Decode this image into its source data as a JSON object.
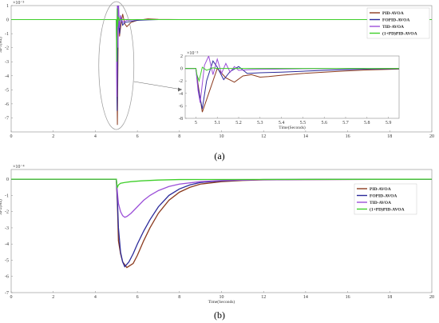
{
  "colors": {
    "PID-AVOA": "#8b3a1e",
    "FOPID-AVOA": "#2b2a9a",
    "TID-AVOA": "#9b4fd8",
    "(1+PD)PID-AVOA": "#3fcf2a",
    "axis": "#8a8a8a",
    "grid": "#f0f0f0"
  },
  "chart_data": [
    {
      "id": "a",
      "type": "line",
      "caption": "(a)",
      "ylabel": "ΔF1(Hz)",
      "xlabel": "",
      "xlim": [
        0,
        20
      ],
      "ylim": [
        -8,
        1
      ],
      "xticks": [
        0,
        2,
        4,
        6,
        8,
        10,
        12,
        14,
        16,
        18,
        20
      ],
      "yticks": [
        1,
        0,
        -1,
        -2,
        -3,
        -4,
        -5,
        -6,
        -7
      ],
      "exponent": "×10⁻³",
      "legend_position": "top-right",
      "series": [
        {
          "name": "PID-AVOA",
          "x": [
            0,
            5,
            5.05,
            5.1,
            5.15,
            5.2,
            5.3,
            5.4,
            5.5,
            5.7,
            6,
            6.5,
            7,
            8,
            20
          ],
          "y": [
            0,
            0,
            -7.5,
            0.8,
            -1.2,
            -0.6,
            0.4,
            -0.3,
            -0.5,
            -0.2,
            -0.05,
            0.05,
            0.02,
            0,
            0
          ]
        },
        {
          "name": "FOPID-AVOA",
          "x": [
            0,
            5,
            5.04,
            5.08,
            5.12,
            5.16,
            5.2,
            5.3,
            5.4,
            5.6,
            6,
            6.5,
            7,
            8,
            20
          ],
          "y": [
            0,
            0,
            -6.5,
            1.2,
            -0.5,
            -1.0,
            0.3,
            -0.4,
            -0.2,
            -0.15,
            -0.05,
            -0.02,
            0,
            0,
            0
          ]
        },
        {
          "name": "TID-AVOA",
          "x": [
            0,
            5,
            5.02,
            5.05,
            5.08,
            5.11,
            5.15,
            5.2,
            5.3,
            5.5,
            6,
            7,
            20
          ],
          "y": [
            0,
            0,
            -5.5,
            2.0,
            -2.0,
            1.0,
            -0.6,
            0.3,
            -0.2,
            -0.05,
            0,
            0,
            0
          ]
        },
        {
          "name": "(1+PD)PID-AVOA",
          "x": [
            0,
            5,
            5.02,
            5.04,
            5.06,
            5.1,
            5.15,
            5.2,
            20
          ],
          "y": [
            0,
            0,
            -3.0,
            0.8,
            -0.5,
            0.2,
            -0.05,
            0,
            0
          ]
        }
      ],
      "inset": {
        "xlim": [
          4.95,
          5.95
        ],
        "ylim": [
          -8,
          2
        ],
        "xticks": [
          5,
          5.1,
          5.2,
          5.3,
          5.4,
          5.5,
          5.6,
          5.7,
          5.8,
          5.9
        ],
        "yticks": [
          2,
          0,
          -2,
          -4,
          -6,
          -8
        ],
        "xlabel": "Time(Seconds)",
        "exponent": "×10⁻³",
        "series": [
          {
            "name": "PID-AVOA",
            "x": [
              4.95,
              5.0,
              5.01,
              5.03,
              5.06,
              5.1,
              5.14,
              5.18,
              5.22,
              5.26,
              5.3,
              5.34,
              5.4,
              5.5,
              5.6,
              5.7,
              5.8,
              5.95
            ],
            "y": [
              0,
              0,
              -2.5,
              -7.0,
              -4.0,
              0.0,
              -1.5,
              -2.2,
              -1.2,
              -1.0,
              -1.4,
              -1.3,
              -1.1,
              -0.8,
              -0.6,
              -0.4,
              -0.25,
              -0.1
            ]
          },
          {
            "name": "FOPID-AVOA",
            "x": [
              4.95,
              5.0,
              5.01,
              5.03,
              5.05,
              5.08,
              5.1,
              5.13,
              5.16,
              5.2,
              5.24,
              5.3,
              5.4,
              5.5,
              5.6,
              5.7,
              5.8,
              5.95
            ],
            "y": [
              0,
              0,
              -3.0,
              -6.5,
              -2.0,
              1.2,
              0.2,
              -1.8,
              -0.5,
              0.3,
              -0.8,
              -0.7,
              -0.6,
              -0.45,
              -0.3,
              -0.2,
              -0.1,
              -0.05
            ]
          },
          {
            "name": "TID-AVOA",
            "x": [
              4.95,
              5.0,
              5.01,
              5.02,
              5.04,
              5.06,
              5.08,
              5.1,
              5.12,
              5.14,
              5.16,
              5.18,
              5.2,
              5.25,
              5.3,
              5.4,
              5.5,
              5.95
            ],
            "y": [
              0,
              0,
              -3.5,
              -5.5,
              0.5,
              2.0,
              -1.0,
              1.5,
              -0.8,
              0.8,
              -0.6,
              0.3,
              -0.3,
              -0.2,
              -0.15,
              -0.1,
              -0.05,
              0
            ]
          },
          {
            "name": "(1+PD)PID-AVOA",
            "x": [
              4.95,
              5.0,
              5.005,
              5.015,
              5.03,
              5.05,
              5.08,
              5.1,
              5.95
            ],
            "y": [
              0,
              0,
              -1.0,
              -2.0,
              0.2,
              -0.3,
              0.1,
              0,
              0
            ]
          }
        ]
      }
    },
    {
      "id": "b",
      "type": "line",
      "caption": "(b)",
      "ylabel": "ΔF2(Hz)",
      "xlabel": "Time(Seconds)",
      "xlim": [
        0,
        20
      ],
      "ylim": [
        -7,
        0.6
      ],
      "xticks": [
        0,
        2,
        4,
        6,
        8,
        10,
        12,
        14,
        16,
        18,
        20
      ],
      "yticks": [
        0,
        -1,
        -2,
        -3,
        -4,
        -5,
        -6,
        -7
      ],
      "exponent": "×10⁻⁴",
      "legend_position": "right",
      "series": [
        {
          "name": "PID-AVOA",
          "x": [
            0,
            5,
            5.05,
            5.1,
            5.2,
            5.3,
            5.5,
            5.8,
            6,
            6.3,
            6.6,
            7,
            7.5,
            8,
            8.5,
            9,
            10,
            11,
            12,
            14,
            20
          ],
          "y": [
            0,
            0,
            -1.5,
            -3.8,
            -4.6,
            -5.1,
            -5.45,
            -5.2,
            -4.7,
            -3.8,
            -3.0,
            -2.1,
            -1.3,
            -0.8,
            -0.5,
            -0.3,
            -0.15,
            -0.08,
            -0.04,
            -0.02,
            0
          ]
        },
        {
          "name": "FOPID-AVOA",
          "x": [
            0,
            5,
            5.05,
            5.1,
            5.2,
            5.3,
            5.4,
            5.6,
            5.8,
            6,
            6.3,
            6.6,
            7,
            7.5,
            8,
            8.5,
            9,
            10,
            11,
            12,
            14,
            20
          ],
          "y": [
            0,
            0,
            -1.2,
            -3.0,
            -4.5,
            -5.1,
            -5.4,
            -5.1,
            -4.6,
            -4.0,
            -3.2,
            -2.5,
            -1.7,
            -1.0,
            -0.6,
            -0.35,
            -0.2,
            -0.1,
            -0.05,
            -0.02,
            -0.01,
            0
          ]
        },
        {
          "name": "TID-AVOA",
          "x": [
            0,
            5,
            5.05,
            5.1,
            5.2,
            5.3,
            5.4,
            5.5,
            5.7,
            6,
            6.3,
            6.6,
            7,
            7.5,
            8,
            9,
            10,
            12,
            20
          ],
          "y": [
            0,
            0,
            -0.8,
            -1.5,
            -2.0,
            -2.25,
            -2.35,
            -2.3,
            -2.1,
            -1.7,
            -1.3,
            -1.0,
            -0.7,
            -0.45,
            -0.3,
            -0.15,
            -0.08,
            -0.03,
            0
          ]
        },
        {
          "name": "(1+PD)PID-AVOA",
          "x": [
            0,
            5,
            5.02,
            5.05,
            5.1,
            5.2,
            5.4,
            5.7,
            6.2,
            7,
            8,
            20
          ],
          "y": [
            0,
            0,
            -0.3,
            -0.5,
            -0.35,
            -0.25,
            -0.2,
            -0.15,
            -0.1,
            -0.05,
            -0.02,
            0
          ]
        }
      ]
    }
  ]
}
